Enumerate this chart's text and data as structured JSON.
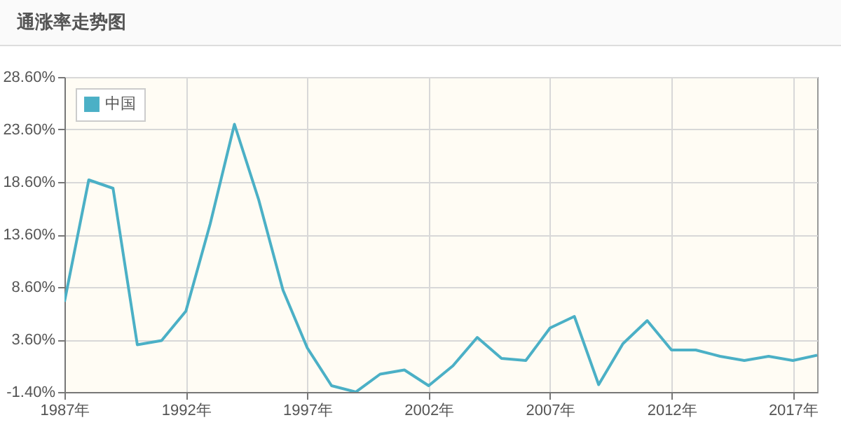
{
  "chart_data": {
    "type": "line",
    "title": "通涨率走势图",
    "x": [
      1987,
      1988,
      1989,
      1990,
      1991,
      1992,
      1993,
      1994,
      1995,
      1996,
      1997,
      1998,
      1999,
      2000,
      2001,
      2002,
      2003,
      2004,
      2005,
      2006,
      2007,
      2008,
      2009,
      2010,
      2011,
      2012,
      2013,
      2014,
      2015,
      2016,
      2017,
      2018
    ],
    "series": [
      {
        "name": "中国",
        "color": "#4bb0c6",
        "values": [
          7.2,
          18.8,
          18.0,
          3.1,
          3.5,
          6.3,
          14.6,
          24.1,
          16.9,
          8.3,
          2.8,
          -0.8,
          -1.4,
          0.3,
          0.7,
          -0.8,
          1.1,
          3.8,
          1.8,
          1.6,
          4.7,
          5.8,
          -0.7,
          3.2,
          5.4,
          2.6,
          2.6,
          2.0,
          1.6,
          2.0,
          1.6,
          2.1
        ]
      }
    ],
    "xlim": [
      1987,
      2018
    ],
    "xticks": [
      {
        "value": 1987,
        "label": "1987年"
      },
      {
        "value": 1992,
        "label": "1992年"
      },
      {
        "value": 1997,
        "label": "1997年"
      },
      {
        "value": 2002,
        "label": "2002年"
      },
      {
        "value": 2007,
        "label": "2007年"
      },
      {
        "value": 2012,
        "label": "2012年"
      },
      {
        "value": 2017,
        "label": "2017年"
      }
    ],
    "ylim": [
      -1.4,
      28.6
    ],
    "yticks": [
      {
        "value": -1.4,
        "label": "-1.40%"
      },
      {
        "value": 3.6,
        "label": "3.60%"
      },
      {
        "value": 8.6,
        "label": "8.60%"
      },
      {
        "value": 13.6,
        "label": "13.60%"
      },
      {
        "value": 18.6,
        "label": "18.60%"
      },
      {
        "value": 23.6,
        "label": "23.60%"
      },
      {
        "value": 28.6,
        "label": "28.60%"
      }
    ],
    "grid": true,
    "legend": "top left",
    "marker": "none",
    "line_style": "solid"
  }
}
